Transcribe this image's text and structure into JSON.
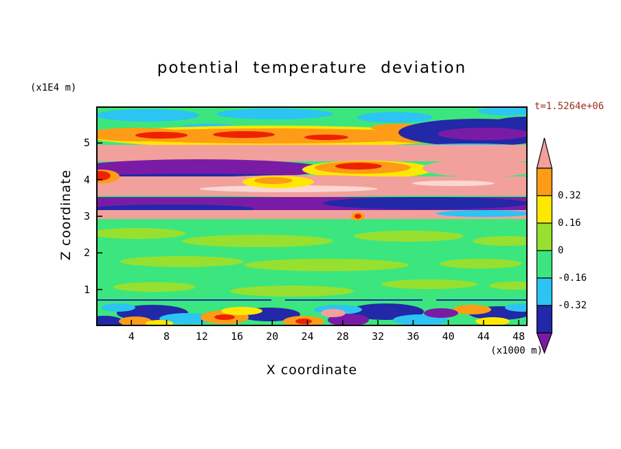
{
  "title": "potential temperature deviation",
  "time_label": "t=1.5264e+06",
  "colors": {
    "time_label": "#9b2d1d",
    "text": "#000000",
    "plot_border": "#000000"
  },
  "axes": {
    "x_label": "X coordinate",
    "x_unit": "(x1000 m)",
    "y_label": "Z coordinate",
    "y_unit": "(x1E4 m)"
  },
  "colorbar": {
    "boundary_labels": [
      "0.32",
      "0.16",
      "0",
      "-0.16",
      "-0.32"
    ],
    "segment_color_keys": [
      "or",
      "ye",
      "yg",
      "sg",
      "cy",
      "na"
    ],
    "arrow_top_color_key": "sa",
    "arrow_bottom_color_key": "pu"
  },
  "chart_data": {
    "type": "heatmap",
    "title": "potential temperature deviation",
    "xlabel": "X coordinate (x1000 m)",
    "ylabel": "Z coordinate (x1E4 m)",
    "time_annotation": "t=1.5264e+06",
    "x_ticks": [
      4,
      8,
      12,
      16,
      20,
      24,
      28,
      32,
      36,
      40,
      44,
      48
    ],
    "y_ticks": [
      1,
      2,
      3,
      4,
      5
    ],
    "x_range": [
      0,
      49
    ],
    "y_range": [
      0,
      6
    ],
    "contour_levels": [
      -0.48,
      -0.32,
      -0.16,
      0,
      0.16,
      0.32,
      0.48
    ],
    "colorbar_boundary_labels": [
      "0.32",
      "0.16",
      "0",
      "-0.16",
      "-0.32"
    ],
    "value_band_colors_high_to_low": [
      "above 0.48: salmon",
      "0.32 to 0.48: orange",
      "0.16 to 0.32: yellow",
      "0 to 0.16: yellow-green",
      "-0.16 to 0: green",
      "-0.32 to -0.16: cyan",
      "-0.48 to -0.32: navy",
      "below -0.48: purple"
    ],
    "legend_position": "right",
    "grid": false,
    "background_key": "sg",
    "palette": {
      "sg": "#3ce67e",
      "yg": "#97e02f",
      "ye": "#ffe800",
      "or": "#ff9c17",
      "re": "#ee2200",
      "sa": "#f2a09b",
      "lp": "#fad7d2",
      "cy": "#2cc4f2",
      "na": "#2228a8",
      "pu": "#7a1ba6"
    },
    "field_shapes": [
      [
        "e",
        75,
        13,
        75,
        9,
        "cy"
      ],
      [
        "e",
        260,
        11,
        85,
        8,
        "cy"
      ],
      [
        "e",
        435,
        16,
        55,
        8,
        "cy"
      ],
      [
        "e",
        598,
        7,
        42,
        6,
        "cy"
      ],
      [
        "e",
        165,
        31,
        45,
        6,
        "cy"
      ],
      [
        "e",
        255,
        44,
        265,
        16,
        "ye"
      ],
      [
        "e",
        255,
        43,
        245,
        11,
        "or"
      ],
      [
        "e",
        60,
        41,
        75,
        10,
        "or"
      ],
      [
        "e",
        95,
        42,
        38,
        5,
        "re"
      ],
      [
        "e",
        215,
        41,
        45,
        5,
        "re"
      ],
      [
        "e",
        335,
        45,
        32,
        4,
        "re"
      ],
      [
        "e",
        470,
        46,
        55,
        7,
        "or"
      ],
      [
        "e",
        440,
        31,
        40,
        6,
        "or"
      ],
      [
        "e",
        555,
        38,
        115,
        20,
        "na"
      ],
      [
        "e",
        625,
        28,
        55,
        13,
        "na"
      ],
      [
        "e",
        565,
        40,
        68,
        9,
        "pu"
      ],
      [
        "e",
        545,
        60,
        85,
        6,
        "cy"
      ],
      [
        "r",
        0,
        56,
        628,
        24,
        "sa"
      ],
      [
        "e",
        150,
        91,
        185,
        14,
        "pu"
      ],
      [
        "e",
        150,
        103,
        160,
        5,
        "na"
      ],
      [
        "e",
        395,
        92,
        95,
        13,
        "ye"
      ],
      [
        "e",
        388,
        89,
        70,
        9,
        "or"
      ],
      [
        "e",
        382,
        87,
        34,
        5,
        "re"
      ],
      [
        "e",
        560,
        90,
        85,
        13,
        "sa"
      ],
      [
        "r",
        0,
        102,
        628,
        28,
        "sa"
      ],
      [
        "e",
        300,
        116,
        210,
        16,
        "sa"
      ],
      [
        "e",
        280,
        120,
        130,
        5,
        "lp"
      ],
      [
        "e",
        520,
        112,
        60,
        4,
        "lp"
      ],
      [
        "e",
        265,
        110,
        52,
        9,
        "ye"
      ],
      [
        "e",
        258,
        108,
        28,
        5,
        "or"
      ],
      [
        "e",
        8,
        102,
        26,
        10,
        "or"
      ],
      [
        "e",
        5,
        101,
        16,
        7,
        "re"
      ],
      [
        "r",
        0,
        132,
        628,
        19,
        "pu"
      ],
      [
        "e",
        480,
        141,
        150,
        9,
        "na"
      ],
      [
        "e",
        110,
        149,
        120,
        6,
        "na"
      ],
      [
        "r",
        0,
        151,
        628,
        13,
        "sa"
      ],
      [
        "e",
        565,
        156,
        70,
        5,
        "cy"
      ],
      [
        "e",
        60,
        185,
        70,
        8,
        "yg"
      ],
      [
        "e",
        235,
        196,
        110,
        9,
        "yg"
      ],
      [
        "e",
        455,
        189,
        80,
        8,
        "yg"
      ],
      [
        "e",
        598,
        196,
        50,
        7,
        "yg"
      ],
      [
        "e",
        125,
        226,
        90,
        8,
        "yg"
      ],
      [
        "e",
        335,
        231,
        120,
        9,
        "yg"
      ],
      [
        "e",
        560,
        229,
        60,
        7,
        "yg"
      ],
      [
        "e",
        85,
        263,
        60,
        7,
        "yg"
      ],
      [
        "e",
        285,
        269,
        90,
        8,
        "yg"
      ],
      [
        "e",
        485,
        259,
        70,
        7,
        "yg"
      ],
      [
        "e",
        612,
        261,
        40,
        6,
        "yg"
      ],
      [
        "e",
        381,
        160,
        10,
        6,
        "or"
      ],
      [
        "e",
        381,
        160,
        5,
        3.5,
        "re"
      ],
      [
        "r",
        0,
        281,
        255,
        2,
        "na"
      ],
      [
        "r",
        275,
        281,
        200,
        2,
        "na"
      ],
      [
        "r",
        495,
        281,
        133,
        2,
        "na"
      ],
      [
        "e",
        82,
        301,
        52,
        12,
        "na"
      ],
      [
        "e",
        252,
        303,
        45,
        10,
        "na"
      ],
      [
        "e",
        422,
        299,
        55,
        12,
        "na"
      ],
      [
        "e",
        587,
        301,
        45,
        10,
        "na"
      ],
      [
        "e",
        12,
        314,
        28,
        9,
        "na"
      ],
      [
        "e",
        132,
        309,
        40,
        8,
        "cy"
      ],
      [
        "e",
        352,
        296,
        35,
        7,
        "cy"
      ],
      [
        "e",
        472,
        311,
        40,
        8,
        "cy"
      ],
      [
        "e",
        620,
        293,
        25,
        6,
        "cy"
      ],
      [
        "e",
        32,
        293,
        25,
        6,
        "cy"
      ],
      [
        "e",
        187,
        307,
        35,
        10,
        "or"
      ],
      [
        "e",
        187,
        307,
        15,
        4,
        "re"
      ],
      [
        "e",
        302,
        313,
        30,
        8,
        "or"
      ],
      [
        "e",
        302,
        313,
        12,
        4,
        "re"
      ],
      [
        "e",
        547,
        296,
        28,
        7,
        "or"
      ],
      [
        "e",
        57,
        313,
        24,
        7,
        "or"
      ],
      [
        "e",
        212,
        298,
        30,
        6,
        "ye"
      ],
      [
        "e",
        577,
        313,
        25,
        6,
        "ye"
      ],
      [
        "e",
        92,
        316,
        20,
        5,
        "ye"
      ],
      [
        "e",
        367,
        311,
        30,
        9,
        "pu"
      ],
      [
        "e",
        502,
        301,
        25,
        7,
        "pu"
      ],
      [
        "e",
        345,
        301,
        18,
        6,
        "sa"
      ]
    ],
    "description": "Filled-contour x-z cross-section: alternating high (salmon/orange) and low (purple/navy) horizontal bands aloft around z=4-5 (x1E4 m), near-zero green field in the middle, and a thin noisy mixed layer near z=0.6."
  }
}
